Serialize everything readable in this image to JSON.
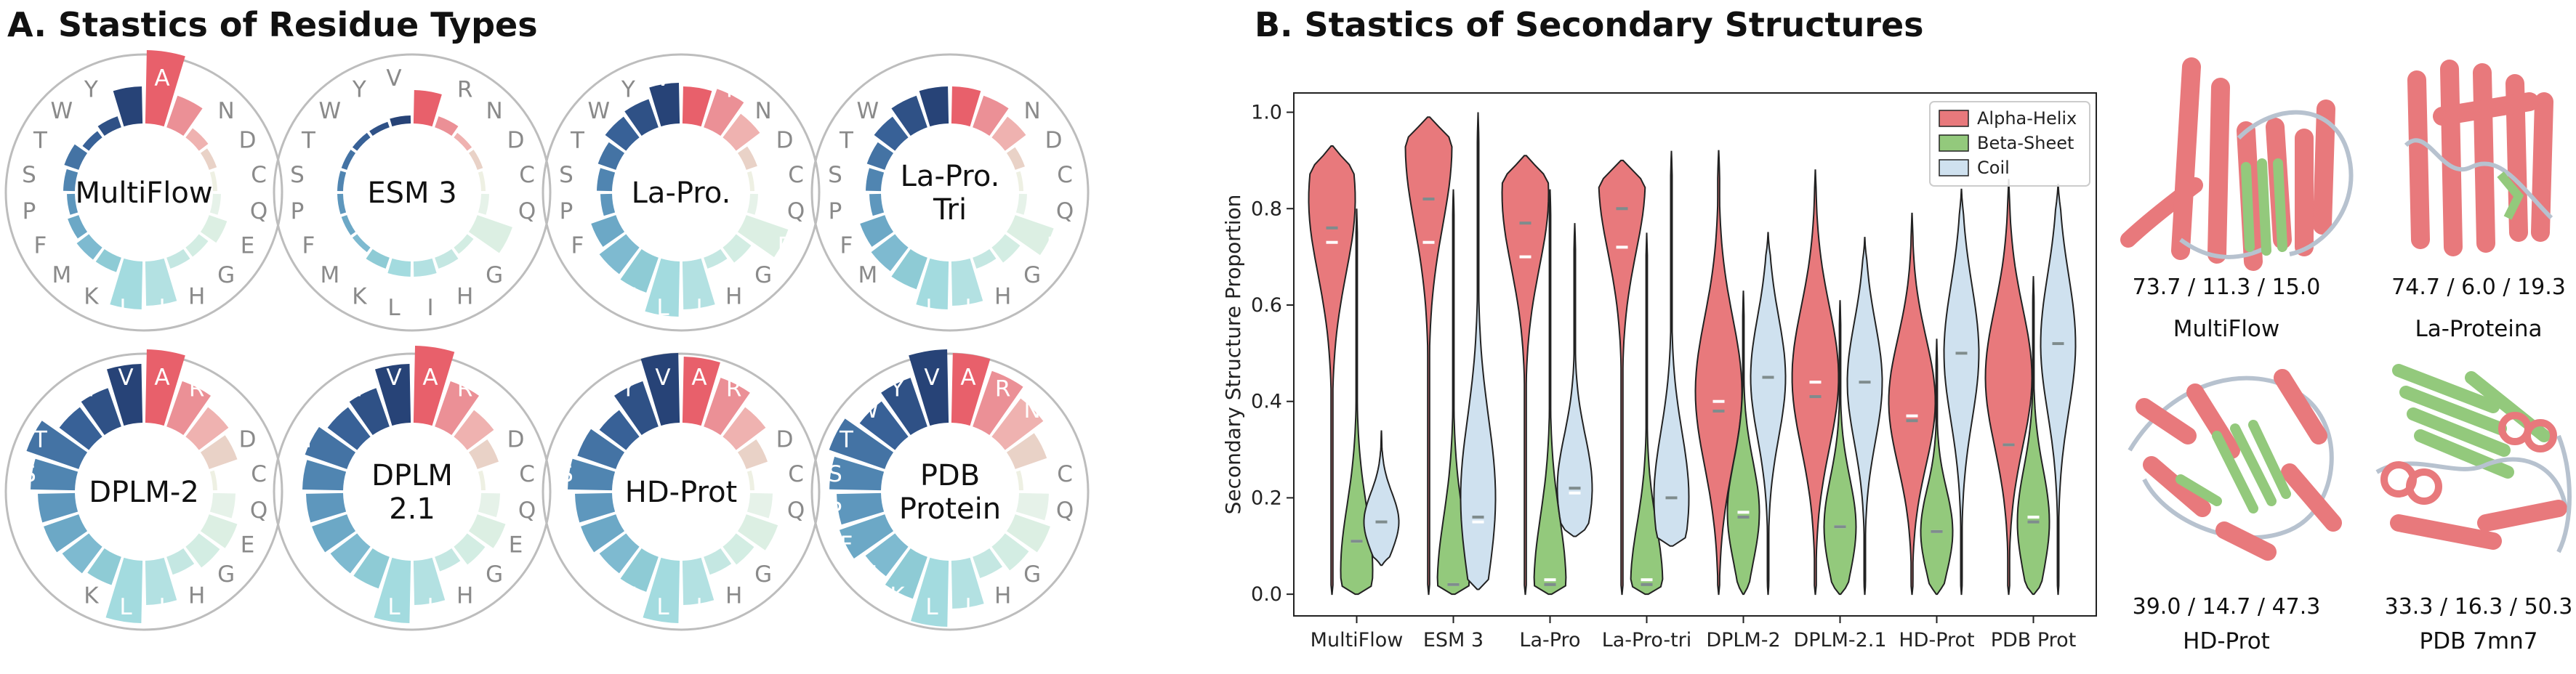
{
  "panel_a": {
    "title": "A. Stastics of Residue Types"
  },
  "panel_b": {
    "title": "B. Stastics of Secondary Structures"
  },
  "chart_data": [
    {
      "type": "radial-bar",
      "title": "A. Stastics of Residue Types",
      "residues": [
        "A",
        "R",
        "N",
        "D",
        "C",
        "Q",
        "E",
        "G",
        "H",
        "I",
        "L",
        "K",
        "M",
        "F",
        "P",
        "S",
        "T",
        "W",
        "Y",
        "V"
      ],
      "colors": [
        "#e8606b",
        "#eb9096",
        "#efb2b0",
        "#e9d2c7",
        "#eef0e3",
        "#e6f2e9",
        "#dcefe3",
        "#d3ede3",
        "#c4e7e2",
        "#b3e1e2",
        "#a3dbdf",
        "#8ecbd5",
        "#7ebad0",
        "#6ca8c6",
        "#5e97bd",
        "#5085b1",
        "#4473a4",
        "#386197",
        "#2f5186",
        "#274377"
      ],
      "wheels": [
        {
          "label": [
            "MultiFlow"
          ],
          "values": [
            0.95,
            0.4,
            0.1,
            0.05,
            0,
            0.05,
            0.2,
            0.1,
            0.1,
            0.55,
            0.6,
            0.15,
            0.15,
            0.1,
            0.05,
            0.1,
            0.15,
            0.05,
            0.1,
            0.45
          ]
        },
        {
          "label": [
            "ESM 3"
          ],
          "values": [
            0.4,
            0.1,
            0.02,
            0.02,
            0,
            0.05,
            0.45,
            0.05,
            0.1,
            0.15,
            0.15,
            0.1,
            0.02,
            0.02,
            0.02,
            0.02,
            0.02,
            0.02,
            0.02,
            0.05
          ]
        },
        {
          "label": [
            "La-Pro."
          ],
          "values": [
            0.45,
            0.5,
            0.35,
            0.1,
            0,
            0.05,
            0.55,
            0.2,
            0.1,
            0.6,
            0.7,
            0.45,
            0.4,
            0.3,
            0.1,
            0.15,
            0.2,
            0.3,
            0.35,
            0.5
          ]
        },
        {
          "label": [
            "La-Pro.",
            "Tri"
          ],
          "values": [
            0.45,
            0.4,
            0.3,
            0.08,
            0,
            0.05,
            0.5,
            0.2,
            0.1,
            0.55,
            0.6,
            0.4,
            0.35,
            0.3,
            0.1,
            0.15,
            0.2,
            0.3,
            0.4,
            0.45
          ]
        },
        {
          "label": [
            "DPLM-2"
          ],
          "values": [
            0.95,
            0.6,
            0.45,
            0.35,
            0,
            0.25,
            0.35,
            0.3,
            0.2,
            0.55,
            0.8,
            0.35,
            0.4,
            0.45,
            0.45,
            0.55,
            0.7,
            0.45,
            0.5,
            0.75
          ]
        },
        {
          "label": [
            "DPLM",
            "2.1"
          ],
          "values": [
            1.0,
            0.6,
            0.4,
            0.25,
            0,
            0.2,
            0.35,
            0.25,
            0.15,
            0.55,
            0.8,
            0.4,
            0.4,
            0.45,
            0.45,
            0.5,
            0.55,
            0.45,
            0.5,
            0.75
          ]
        },
        {
          "label": [
            "HD-Prot"
          ],
          "values": [
            0.85,
            0.65,
            0.45,
            0.25,
            0,
            0.25,
            0.4,
            0.25,
            0.2,
            0.55,
            0.8,
            0.45,
            0.4,
            0.45,
            0.45,
            0.55,
            0.5,
            0.4,
            0.6,
            0.9
          ]
        },
        {
          "label": [
            "PDB",
            "Protein"
          ],
          "values": [
            0.9,
            0.75,
            0.6,
            0.4,
            0,
            0.35,
            0.45,
            0.35,
            0.25,
            0.6,
            0.85,
            0.55,
            0.45,
            0.6,
            0.55,
            0.65,
            0.75,
            0.55,
            0.65,
            0.95
          ]
        }
      ]
    },
    {
      "type": "violin",
      "title": "B. Stastics of Secondary Structures",
      "ylabel": "Secondary Structure Proportion",
      "ylim": [
        0.0,
        1.0
      ],
      "yticks": [
        "0.0",
        "0.2",
        "0.4",
        "0.6",
        "0.8",
        "1.0"
      ],
      "categories": [
        "MultiFlow",
        "ESM 3",
        "La-Pro",
        "La-Pro-tri",
        "DPLM-2",
        "DPLM-2.1",
        "HD-Prot",
        "PDB Prot"
      ],
      "legend": [
        "Alpha-Helix",
        "Beta-Sheet",
        "Coil"
      ],
      "series": [
        {
          "name": "Alpha-Helix",
          "color": "#e8797c",
          "min": [
            0.0,
            0.0,
            0.0,
            0.0,
            0.0,
            0.0,
            0.0,
            0.0
          ],
          "max": [
            0.93,
            0.99,
            0.91,
            0.9,
            0.92,
            0.88,
            0.79,
            0.86
          ],
          "mean": [
            0.73,
            0.73,
            0.7,
            0.72,
            0.4,
            0.44,
            0.37,
            0.31
          ],
          "median": [
            0.76,
            0.82,
            0.77,
            0.8,
            0.38,
            0.41,
            0.36,
            0.31
          ],
          "peak": [
            0.82,
            0.93,
            0.83,
            0.86,
            0.42,
            0.45,
            0.4,
            0.45
          ]
        },
        {
          "name": "Beta-Sheet",
          "color": "#93c97c",
          "min": [
            0.0,
            0.0,
            0.0,
            0.0,
            0.0,
            0.0,
            0.0,
            0.0
          ],
          "max": [
            0.8,
            0.84,
            0.84,
            0.75,
            0.63,
            0.61,
            0.53,
            0.66
          ],
          "mean": [
            0.11,
            0.02,
            0.03,
            0.03,
            0.17,
            0.14,
            0.13,
            0.16
          ],
          "median": [
            0.11,
            0.02,
            0.02,
            0.02,
            0.16,
            0.14,
            0.13,
            0.15
          ],
          "peak": [
            0.05,
            0.02,
            0.02,
            0.02,
            0.17,
            0.14,
            0.13,
            0.15
          ]
        },
        {
          "name": "Coil",
          "color": "#cfe1ef",
          "min": [
            0.06,
            0.01,
            0.12,
            0.1,
            0.0,
            0.0,
            0.0,
            0.0
          ],
          "max": [
            0.34,
            1.0,
            0.77,
            0.92,
            0.75,
            0.74,
            0.84,
            0.85
          ],
          "mean": [
            0.15,
            0.15,
            0.21,
            0.2,
            0.45,
            0.44,
            0.5,
            0.52
          ],
          "median": [
            0.15,
            0.16,
            0.22,
            0.2,
            0.45,
            0.44,
            0.5,
            0.52
          ],
          "peak": [
            0.15,
            0.2,
            0.22,
            0.2,
            0.45,
            0.44,
            0.5,
            0.52
          ]
        }
      ]
    }
  ],
  "structures": [
    {
      "values": "73.7 / 11.3 / 15.0",
      "name": "MultiFlow"
    },
    {
      "values": "74.7 / 6.0 / 19.3",
      "name": "La-Proteina"
    },
    {
      "values": "39.0 / 14.7 / 47.3",
      "name": "HD-Prot"
    },
    {
      "values": "33.3 / 16.3 / 50.3",
      "name": "PDB 7mn7"
    }
  ]
}
